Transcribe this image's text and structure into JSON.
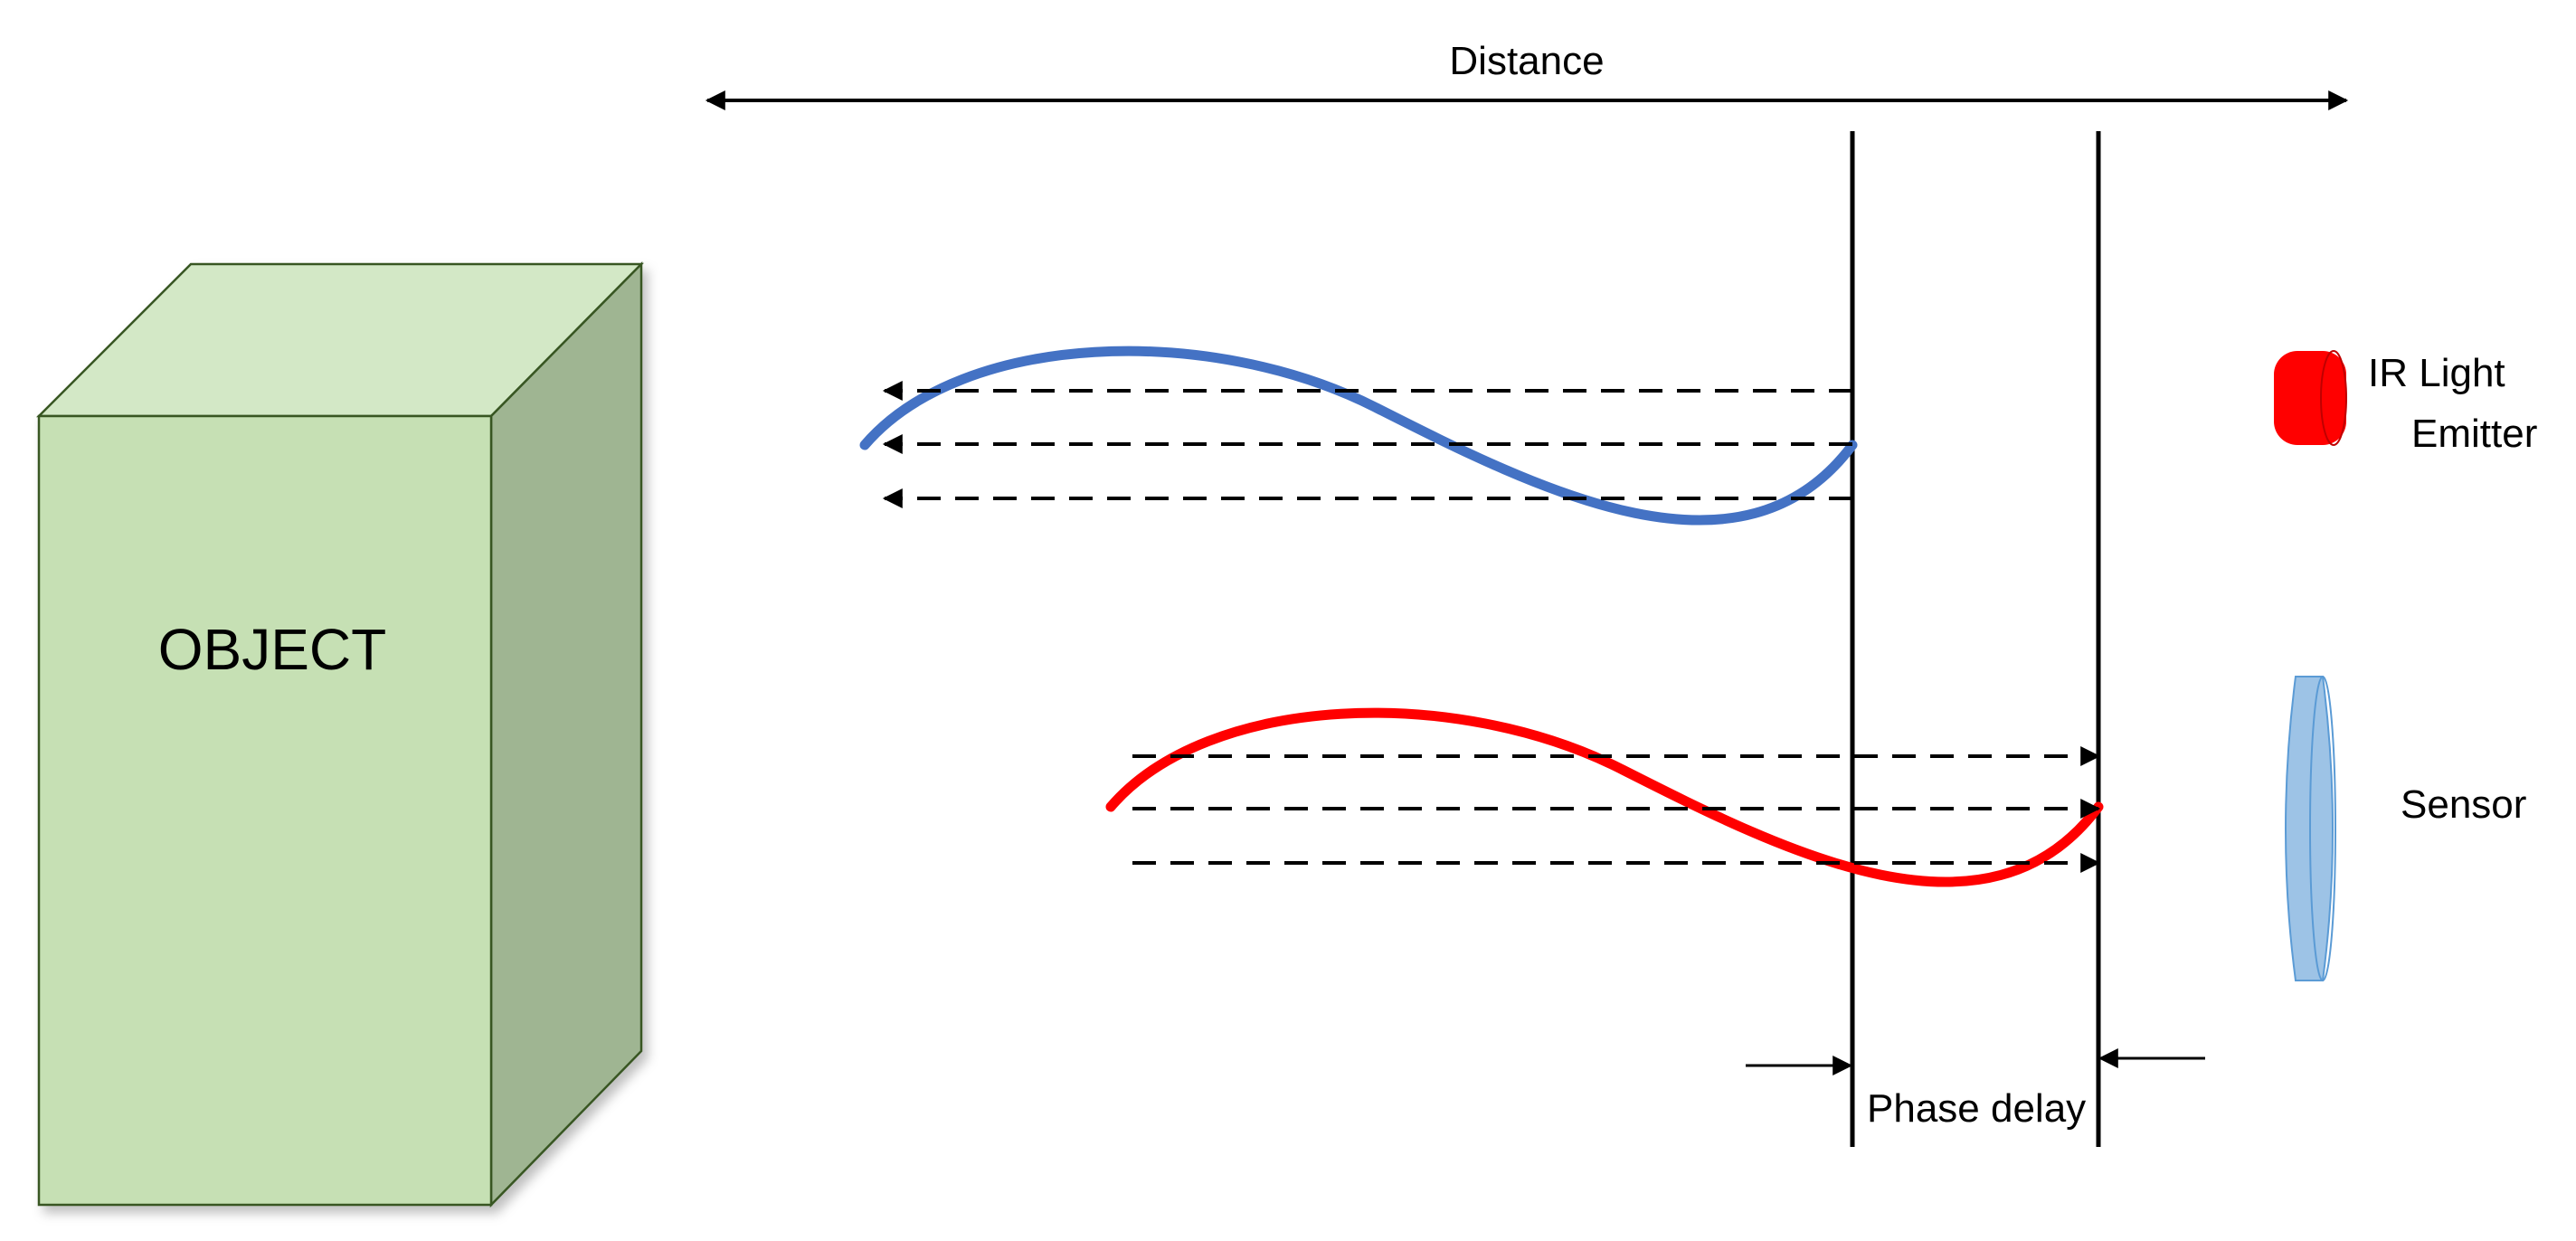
{
  "labels": {
    "distance": "Distance",
    "object": "OBJECT",
    "emitter_line1": "IR Light",
    "emitter_line2": "Emitter",
    "sensor": "Sensor",
    "phase_delay": "Phase delay"
  },
  "colors": {
    "object_front": "#c6e0b4",
    "object_top": "#d3e8c6",
    "object_side": "#9fb592",
    "object_stroke": "#375623",
    "emitted_wave": "#4472c4",
    "reflected_wave": "#ff0000",
    "emitter_fill": "#ff0000",
    "sensor_fill": "#9dc3e6",
    "sensor_stroke": "#5b9bd5",
    "line": "#000000"
  },
  "icons": {
    "emitter": "ir-emitter-icon",
    "sensor": "sensor-lens-icon"
  }
}
